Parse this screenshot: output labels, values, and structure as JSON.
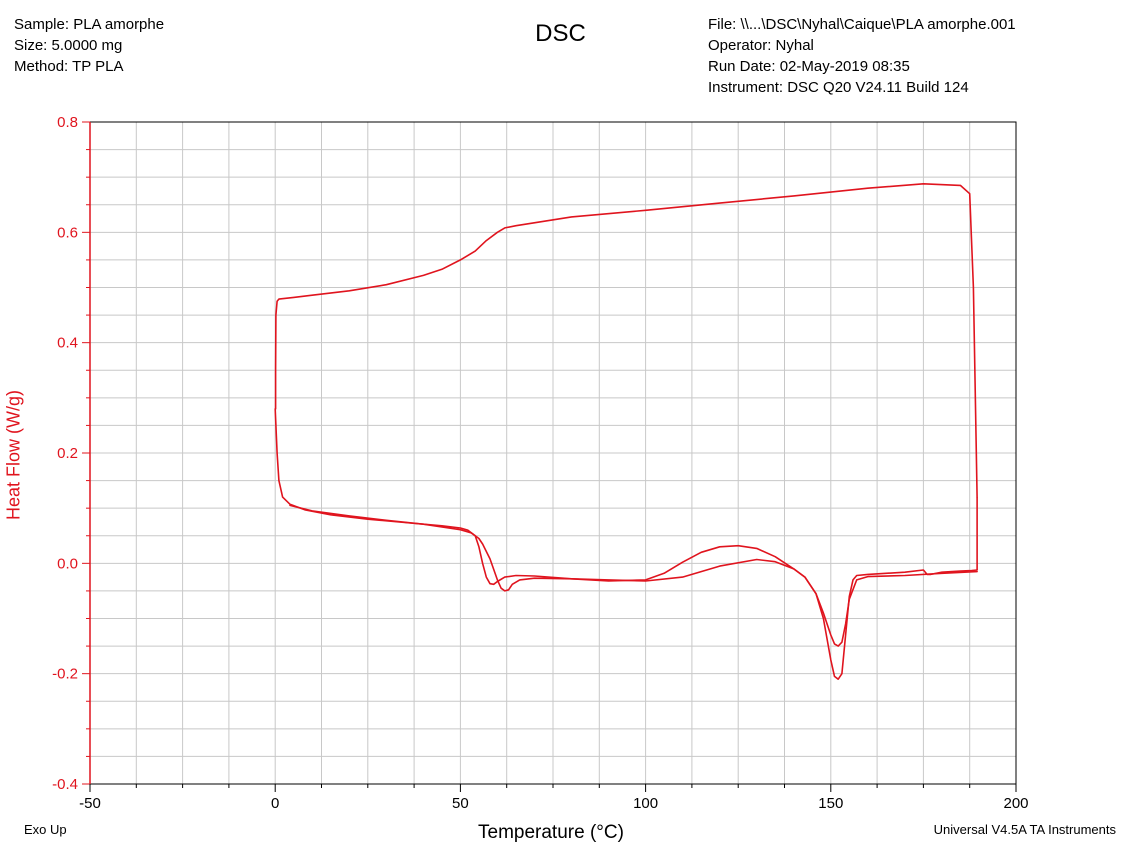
{
  "header": {
    "sample": "Sample: PLA amorphe",
    "size": "Size:  5.0000 mg",
    "method": "Method: TP PLA",
    "file": "File: \\\\...\\DSC\\Nyhal\\Caique\\PLA amorphe.001",
    "operator": "Operator: Nyhal",
    "run_date": "Run Date: 02-May-2019 08:35",
    "instrument": "Instrument: DSC Q20 V24.11 Build 124"
  },
  "footer": {
    "left": "Exo Up",
    "right": "Universal V4.5A TA Instruments"
  },
  "colors": {
    "curve": "#e0141e",
    "y_axis": "#e0141e",
    "grid": "#c8c8c8"
  },
  "chart_data": {
    "type": "line",
    "title": "DSC",
    "xlabel": "Temperature (°C)",
    "ylabel": "Heat Flow (W/g)",
    "xlim": [
      -50,
      200
    ],
    "ylim": [
      -0.4,
      0.8
    ],
    "x_ticks": [
      -50,
      0,
      50,
      100,
      150,
      200
    ],
    "y_ticks": [
      "0.8",
      "0.6",
      "0.4",
      "0.2",
      "0.0",
      "-0.2",
      "-0.4"
    ],
    "grid": true,
    "series": [
      {
        "values_description": "cooling segment (top)",
        "x": [
          189.5,
          188.5,
          187.5,
          185,
          175,
          160,
          140,
          120,
          100,
          80,
          65,
          62,
          60,
          57,
          54,
          50,
          45,
          40,
          30,
          20,
          10,
          5,
          1,
          0.5,
          0.2,
          0.1,
          0.1
        ],
        "y": [
          0.12,
          0.5,
          0.67,
          0.685,
          0.688,
          0.68,
          0.666,
          0.653,
          0.64,
          0.628,
          0.612,
          0.608,
          0.6,
          0.585,
          0.566,
          0.55,
          0.533,
          0.522,
          0.505,
          0.494,
          0.486,
          0.482,
          0.479,
          0.475,
          0.45,
          0.35,
          0.28
        ]
      },
      {
        "values_description": "first heating",
        "x": [
          0,
          0.5,
          1,
          2,
          4,
          8,
          15,
          25,
          35,
          45,
          50,
          52,
          54,
          55,
          56,
          57,
          58,
          59,
          60,
          62,
          65,
          70,
          80,
          90,
          100,
          105,
          110,
          115,
          120,
          125,
          130,
          135,
          140,
          143,
          146,
          148,
          150,
          151,
          152,
          153,
          154,
          155,
          156,
          157,
          160,
          170,
          175,
          176,
          177,
          180,
          185,
          188,
          189.5
        ],
        "y": [
          0.28,
          0.2,
          0.15,
          0.12,
          0.107,
          0.097,
          0.088,
          0.08,
          0.074,
          0.068,
          0.064,
          0.06,
          0.05,
          0.03,
          0.0,
          -0.025,
          -0.037,
          -0.038,
          -0.033,
          -0.025,
          -0.022,
          -0.023,
          -0.028,
          -0.032,
          -0.03,
          -0.018,
          0.002,
          0.02,
          0.03,
          0.032,
          0.027,
          0.012,
          -0.01,
          -0.025,
          -0.055,
          -0.1,
          -0.175,
          -0.205,
          -0.21,
          -0.2,
          -0.13,
          -0.06,
          -0.03,
          -0.022,
          -0.02,
          -0.016,
          -0.012,
          -0.02,
          -0.02,
          -0.016,
          -0.014,
          -0.013,
          -0.012
        ]
      },
      {
        "values_description": "second heating",
        "x": [
          4,
          10,
          20,
          30,
          40,
          45,
          50,
          53,
          55,
          56,
          58,
          60,
          61,
          62,
          63,
          64,
          66,
          70,
          80,
          90,
          100,
          110,
          120,
          130,
          135,
          140,
          143,
          146,
          148,
          150,
          151,
          152,
          153,
          154,
          155,
          157,
          160,
          170,
          180,
          189.5
        ],
        "y": [
          0.105,
          0.095,
          0.086,
          0.078,
          0.071,
          0.066,
          0.061,
          0.055,
          0.045,
          0.035,
          0.008,
          -0.03,
          -0.045,
          -0.05,
          -0.048,
          -0.038,
          -0.03,
          -0.027,
          -0.028,
          -0.03,
          -0.032,
          -0.025,
          -0.005,
          0.007,
          0.003,
          -0.01,
          -0.025,
          -0.055,
          -0.09,
          -0.13,
          -0.146,
          -0.15,
          -0.143,
          -0.11,
          -0.065,
          -0.03,
          -0.024,
          -0.022,
          -0.018,
          -0.015
        ]
      }
    ]
  }
}
